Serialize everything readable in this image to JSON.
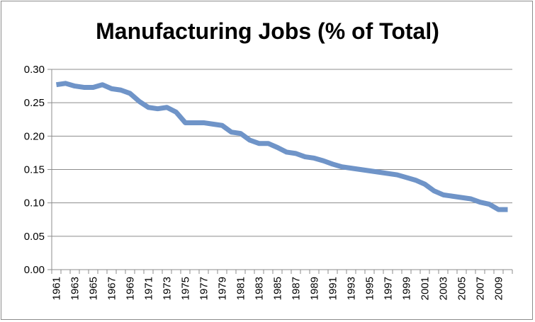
{
  "chart_data": {
    "type": "line",
    "title": "Manufacturing Jobs (% of Total)",
    "xlabel": "",
    "ylabel": "",
    "ylim": [
      0,
      0.3
    ],
    "yticks": [
      "0.00",
      "0.05",
      "0.10",
      "0.15",
      "0.20",
      "0.25",
      "0.30"
    ],
    "xtick_labels": [
      "1961",
      "1963",
      "1965",
      "1967",
      "1969",
      "1971",
      "1973",
      "1975",
      "1977",
      "1979",
      "1981",
      "1983",
      "1985",
      "1987",
      "1989",
      "1991",
      "1993",
      "1995",
      "1997",
      "1999",
      "2001",
      "2003",
      "2005",
      "2007",
      "2009"
    ],
    "grid": "horizontal",
    "legend": "none",
    "series_color": "#6f94c8",
    "x": [
      1961,
      1962,
      1963,
      1964,
      1965,
      1966,
      1967,
      1968,
      1969,
      1970,
      1971,
      1972,
      1973,
      1974,
      1975,
      1976,
      1977,
      1978,
      1979,
      1980,
      1981,
      1982,
      1983,
      1984,
      1985,
      1986,
      1987,
      1988,
      1989,
      1990,
      1991,
      1992,
      1993,
      1994,
      1995,
      1996,
      1997,
      1998,
      1999,
      2000,
      2001,
      2002,
      2003,
      2004,
      2005,
      2006,
      2007,
      2008,
      2009,
      2010
    ],
    "values": [
      0.277,
      0.279,
      0.275,
      0.273,
      0.273,
      0.277,
      0.271,
      0.269,
      0.264,
      0.252,
      0.243,
      0.241,
      0.243,
      0.236,
      0.22,
      0.22,
      0.22,
      0.218,
      0.216,
      0.206,
      0.204,
      0.194,
      0.189,
      0.189,
      0.183,
      0.176,
      0.174,
      0.169,
      0.167,
      0.163,
      0.158,
      0.154,
      0.152,
      0.15,
      0.148,
      0.146,
      0.144,
      0.142,
      0.138,
      0.134,
      0.128,
      0.118,
      0.112,
      0.11,
      0.108,
      0.106,
      0.101,
      0.098,
      0.09,
      0.09
    ]
  }
}
